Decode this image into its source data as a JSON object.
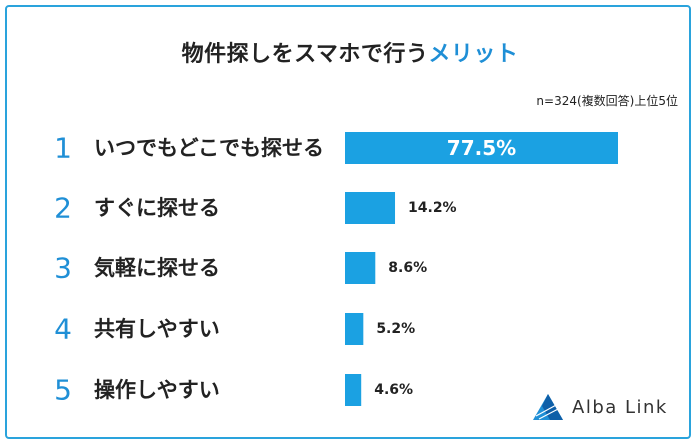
{
  "title": {
    "main": "物件探しをスマホで行う",
    "accent": "メリット"
  },
  "note": "n=324(複数回答)上位5位",
  "colors": {
    "accent": "#1f8fd6",
    "bar": "#1ba1e2",
    "frame": "#2aa3dc"
  },
  "logo": {
    "text": "Alba Link",
    "icon": "alba-link-logo-icon"
  },
  "chart_data": {
    "type": "bar",
    "orientation": "horizontal",
    "title": "物件探しをスマホで行うメリット",
    "ranks": [
      "1",
      "2",
      "3",
      "4",
      "5"
    ],
    "categories": [
      "いつでもどこでも探せる",
      "すぐに探せる",
      "気軽に探せる",
      "共有しやすい",
      "操作しやすい"
    ],
    "values": [
      77.5,
      14.2,
      8.6,
      5.2,
      4.6
    ],
    "value_labels": [
      "77.5%",
      "14.2%",
      "8.6%",
      "5.2%",
      "4.6%"
    ],
    "unit": "%",
    "xlim": [
      0,
      77.5
    ],
    "grid": false,
    "legend": "none"
  }
}
